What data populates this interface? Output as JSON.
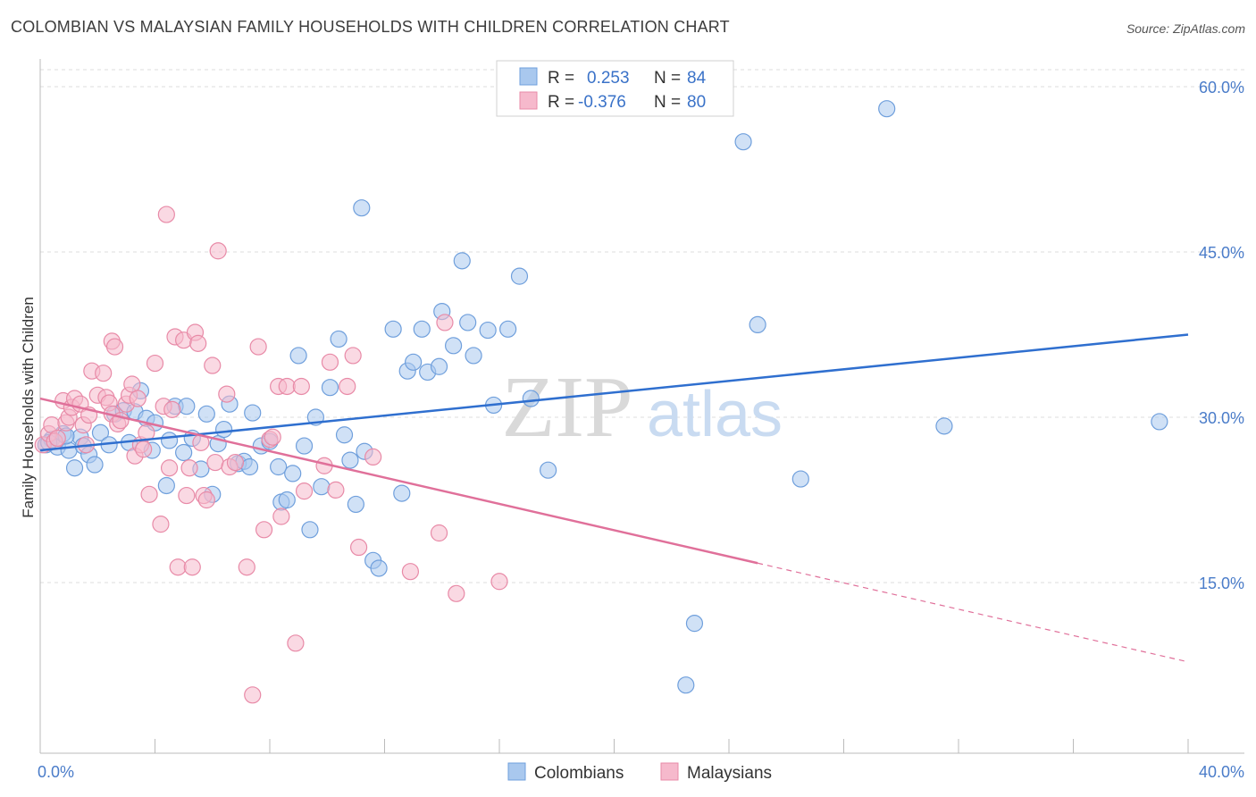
{
  "header": {
    "title": "COLOMBIAN VS MALAYSIAN FAMILY HOUSEHOLDS WITH CHILDREN CORRELATION CHART",
    "source": "Source: ZipAtlas.com"
  },
  "watermark": {
    "zip": "ZIP",
    "atlas": "atlas"
  },
  "legend_top": {
    "rows": [
      {
        "r_label": "R =",
        "r_value": "0.253",
        "n_label": "N =",
        "n_value": "84"
      },
      {
        "r_label": "R =",
        "r_value": "-0.376",
        "n_label": "N =",
        "n_value": "80"
      }
    ]
  },
  "legend_bottom": {
    "items": [
      "Colombians",
      "Malaysians"
    ]
  },
  "colors": {
    "blue_fill": "#a9c8ee",
    "blue_stroke": "#6f9fdc",
    "blue_line": "#2f6fcf",
    "pink_fill": "#f6b9cc",
    "pink_stroke": "#e88aa7",
    "pink_line": "#e0709a",
    "tick_text": "#4a7cc9",
    "grid": "#dddddd"
  },
  "chart_data": {
    "type": "scatter",
    "title": "COLOMBIAN VS MALAYSIAN FAMILY HOUSEHOLDS WITH CHILDREN CORRELATION CHART",
    "xlabel": "",
    "ylabel": "Family Households with Children",
    "xlim": [
      0,
      40
    ],
    "ylim": [
      0,
      62
    ],
    "x_tick_labels": [
      "0.0%",
      "40.0%"
    ],
    "y_ticks": [
      15,
      30,
      45,
      60
    ],
    "y_tick_labels": [
      "15.0%",
      "30.0%",
      "45.0%",
      "60.0%"
    ],
    "grid": true,
    "legend_position": "top-center",
    "series": [
      {
        "name": "Colombians",
        "color": "#a9c8ee",
        "r": 0.253,
        "n": 84,
        "trend": {
          "x0": 0,
          "y0": 27.0,
          "x1": 40,
          "y1": 37.5,
          "solid_until": 40
        },
        "points": [
          [
            0.2,
            27.5
          ],
          [
            0.4,
            28.0
          ],
          [
            0.6,
            27.3
          ],
          [
            0.8,
            28.5
          ],
          [
            1.0,
            27.0
          ],
          [
            1.2,
            25.4
          ],
          [
            1.4,
            28.2
          ],
          [
            1.5,
            27.4
          ],
          [
            1.7,
            26.6
          ],
          [
            1.9,
            25.7
          ],
          [
            2.1,
            28.6
          ],
          [
            2.4,
            27.5
          ],
          [
            2.6,
            30.3
          ],
          [
            2.9,
            30.6
          ],
          [
            3.1,
            27.7
          ],
          [
            3.3,
            30.5
          ],
          [
            3.5,
            32.4
          ],
          [
            3.7,
            29.9
          ],
          [
            3.9,
            27.0
          ],
          [
            4.0,
            29.5
          ],
          [
            4.4,
            23.8
          ],
          [
            4.5,
            27.9
          ],
          [
            4.7,
            31.0
          ],
          [
            5.0,
            26.8
          ],
          [
            5.1,
            31.0
          ],
          [
            5.3,
            28.1
          ],
          [
            5.6,
            25.3
          ],
          [
            5.8,
            30.3
          ],
          [
            6.0,
            23.0
          ],
          [
            6.2,
            27.6
          ],
          [
            6.4,
            28.9
          ],
          [
            6.6,
            31.2
          ],
          [
            6.9,
            25.8
          ],
          [
            7.1,
            26.0
          ],
          [
            7.3,
            25.5
          ],
          [
            7.4,
            30.4
          ],
          [
            7.7,
            27.4
          ],
          [
            8.0,
            27.8
          ],
          [
            8.3,
            25.5
          ],
          [
            8.4,
            22.3
          ],
          [
            8.6,
            22.5
          ],
          [
            8.8,
            24.9
          ],
          [
            9.0,
            35.6
          ],
          [
            9.2,
            27.4
          ],
          [
            9.4,
            19.8
          ],
          [
            9.6,
            30.0
          ],
          [
            9.8,
            23.7
          ],
          [
            10.1,
            32.7
          ],
          [
            10.4,
            37.1
          ],
          [
            10.6,
            28.4
          ],
          [
            10.8,
            26.1
          ],
          [
            11.0,
            22.1
          ],
          [
            11.3,
            26.9
          ],
          [
            11.6,
            17.0
          ],
          [
            11.8,
            16.3
          ],
          [
            12.3,
            38.0
          ],
          [
            12.6,
            23.1
          ],
          [
            12.8,
            34.2
          ],
          [
            13.0,
            35.0
          ],
          [
            13.3,
            38.0
          ],
          [
            13.5,
            34.1
          ],
          [
            14.0,
            39.6
          ],
          [
            14.4,
            36.5
          ],
          [
            14.7,
            44.2
          ],
          [
            14.9,
            38.6
          ],
          [
            15.1,
            35.6
          ],
          [
            15.6,
            37.9
          ],
          [
            15.8,
            31.1
          ],
          [
            16.3,
            38.0
          ],
          [
            16.7,
            42.8
          ],
          [
            17.1,
            31.7
          ],
          [
            17.7,
            25.2
          ],
          [
            22.5,
            5.7
          ],
          [
            22.8,
            11.3
          ],
          [
            24.5,
            55.0
          ],
          [
            25.0,
            38.4
          ],
          [
            26.5,
            24.4
          ],
          [
            29.5,
            58.0
          ],
          [
            31.5,
            29.2
          ],
          [
            39.0,
            29.6
          ],
          [
            11.2,
            49.0
          ],
          [
            0.3,
            27.7
          ],
          [
            0.9,
            28.3
          ],
          [
            13.9,
            34.6
          ]
        ]
      },
      {
        "name": "Malaysians",
        "color": "#f6b9cc",
        "r": -0.376,
        "n": 80,
        "trend": {
          "x0": 0,
          "y0": 31.7,
          "x1": 40,
          "y1": 7.8,
          "solid_until": 25
        },
        "points": [
          [
            0.1,
            27.5
          ],
          [
            0.3,
            28.5
          ],
          [
            0.4,
            29.3
          ],
          [
            0.5,
            27.8
          ],
          [
            0.6,
            28.1
          ],
          [
            0.8,
            31.5
          ],
          [
            0.9,
            29.5
          ],
          [
            1.0,
            30.0
          ],
          [
            1.1,
            30.9
          ],
          [
            1.2,
            31.7
          ],
          [
            1.4,
            31.2
          ],
          [
            1.5,
            29.3
          ],
          [
            1.6,
            27.5
          ],
          [
            1.7,
            30.2
          ],
          [
            1.8,
            34.2
          ],
          [
            2.0,
            32.0
          ],
          [
            2.2,
            34.0
          ],
          [
            2.3,
            31.8
          ],
          [
            2.4,
            31.3
          ],
          [
            2.5,
            30.3
          ],
          [
            2.5,
            36.9
          ],
          [
            2.6,
            36.4
          ],
          [
            2.7,
            29.4
          ],
          [
            2.8,
            29.7
          ],
          [
            3.0,
            31.2
          ],
          [
            3.1,
            32.0
          ],
          [
            3.2,
            33.0
          ],
          [
            3.3,
            26.5
          ],
          [
            3.4,
            31.7
          ],
          [
            3.5,
            27.5
          ],
          [
            3.6,
            27.1
          ],
          [
            3.7,
            28.6
          ],
          [
            3.8,
            23.0
          ],
          [
            4.0,
            34.9
          ],
          [
            4.2,
            20.3
          ],
          [
            4.3,
            31.0
          ],
          [
            4.4,
            48.4
          ],
          [
            4.5,
            25.4
          ],
          [
            4.6,
            30.7
          ],
          [
            4.7,
            37.3
          ],
          [
            4.8,
            16.4
          ],
          [
            5.0,
            37.0
          ],
          [
            5.1,
            22.9
          ],
          [
            5.2,
            25.4
          ],
          [
            5.3,
            16.4
          ],
          [
            5.4,
            37.7
          ],
          [
            5.5,
            36.7
          ],
          [
            5.6,
            27.7
          ],
          [
            5.7,
            22.9
          ],
          [
            5.8,
            22.5
          ],
          [
            6.0,
            34.7
          ],
          [
            6.1,
            25.9
          ],
          [
            6.2,
            45.1
          ],
          [
            6.5,
            32.1
          ],
          [
            6.6,
            25.5
          ],
          [
            6.8,
            25.9
          ],
          [
            7.2,
            16.4
          ],
          [
            7.4,
            4.8
          ],
          [
            7.6,
            36.4
          ],
          [
            7.8,
            19.8
          ],
          [
            8.0,
            28.0
          ],
          [
            8.1,
            28.2
          ],
          [
            8.3,
            32.8
          ],
          [
            8.4,
            21.0
          ],
          [
            8.6,
            32.8
          ],
          [
            8.9,
            9.5
          ],
          [
            9.1,
            32.8
          ],
          [
            9.2,
            23.3
          ],
          [
            9.9,
            25.6
          ],
          [
            10.1,
            35.0
          ],
          [
            10.3,
            23.4
          ],
          [
            10.7,
            32.8
          ],
          [
            10.9,
            35.6
          ],
          [
            11.1,
            18.2
          ],
          [
            11.6,
            26.4
          ],
          [
            12.9,
            16.0
          ],
          [
            13.9,
            19.5
          ],
          [
            14.1,
            38.6
          ],
          [
            14.5,
            14.0
          ],
          [
            16.0,
            15.1
          ]
        ]
      }
    ]
  }
}
